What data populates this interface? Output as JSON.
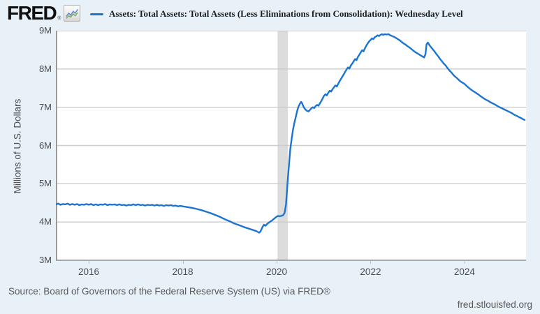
{
  "header": {
    "logo_text": "FRED",
    "logo_registered": "®",
    "legend": {
      "series_label": "Assets: Total Assets: Total Assets (Less Eliminations from Consolidation): Wednesday Level"
    }
  },
  "footer": {
    "source_text": "Source: Board of Governors of the Federal Reserve System (US) via FRED®",
    "site_link": "fred.stlouisfed.org"
  },
  "colors": {
    "page_bg": "#e8f0f8",
    "plot_bg": "#ffffff",
    "line": "#1b74d2",
    "grid": "#cdcdcd",
    "top_grid": "#c2c2c2",
    "axis": "#8a8a8a",
    "recession_band": "#dcdcdc",
    "tick_text": "#4d4d4d",
    "logo_sparkline_blue": "#5b84c4",
    "logo_sparkline_green": "#7aa854"
  },
  "chart_data": {
    "type": "line",
    "title": "Assets: Total Assets: Total Assets (Less Eliminations from Consolidation): Wednesday Level",
    "xlabel": "",
    "ylabel": "Millions of U.S. Dollars",
    "unit_note": "axis tick labels are compact millions: 9M = 9,000,000 million USD",
    "grid": "horizontal",
    "legend_position": "top",
    "xlim": [
      2015.3,
      2025.31
    ],
    "ylim": [
      3,
      9
    ],
    "yticks": [
      {
        "value": 9,
        "label": "9M"
      },
      {
        "value": 8,
        "label": "8M"
      },
      {
        "value": 7,
        "label": "7M"
      },
      {
        "value": 6,
        "label": "6M"
      },
      {
        "value": 5,
        "label": "5M"
      },
      {
        "value": 4,
        "label": "4M"
      },
      {
        "value": 3,
        "label": "3M"
      }
    ],
    "xticks": [
      {
        "value": 2016,
        "label": "2016"
      },
      {
        "value": 2018,
        "label": "2018"
      },
      {
        "value": 2020,
        "label": "2020"
      },
      {
        "value": 2022,
        "label": "2022"
      },
      {
        "value": 2024,
        "label": "2024"
      }
    ],
    "recession_band": {
      "from": 2020.02,
      "to": 2020.24
    },
    "series": [
      {
        "name": "Assets: Total Assets: Total Assets (Less Eliminations from Consolidation): Wednesday Level",
        "color": "#1b74d2",
        "points": [
          [
            2015.3,
            4.46
          ],
          [
            2015.35,
            4.48
          ],
          [
            2015.4,
            4.45
          ],
          [
            2015.45,
            4.47
          ],
          [
            2015.5,
            4.46
          ],
          [
            2015.55,
            4.48
          ],
          [
            2015.6,
            4.45
          ],
          [
            2015.65,
            4.47
          ],
          [
            2015.7,
            4.45
          ],
          [
            2015.75,
            4.47
          ],
          [
            2015.8,
            4.44
          ],
          [
            2015.85,
            4.46
          ],
          [
            2015.9,
            4.45
          ],
          [
            2015.95,
            4.47
          ],
          [
            2016.0,
            4.45
          ],
          [
            2016.05,
            4.47
          ],
          [
            2016.1,
            4.44
          ],
          [
            2016.15,
            4.46
          ],
          [
            2016.2,
            4.44
          ],
          [
            2016.25,
            4.46
          ],
          [
            2016.3,
            4.45
          ],
          [
            2016.35,
            4.47
          ],
          [
            2016.4,
            4.44
          ],
          [
            2016.45,
            4.46
          ],
          [
            2016.5,
            4.45
          ],
          [
            2016.55,
            4.46
          ],
          [
            2016.6,
            4.44
          ],
          [
            2016.65,
            4.46
          ],
          [
            2016.7,
            4.44
          ],
          [
            2016.75,
            4.45
          ],
          [
            2016.8,
            4.43
          ],
          [
            2016.85,
            4.45
          ],
          [
            2016.9,
            4.44
          ],
          [
            2016.95,
            4.46
          ],
          [
            2017.0,
            4.44
          ],
          [
            2017.05,
            4.46
          ],
          [
            2017.1,
            4.44
          ],
          [
            2017.15,
            4.45
          ],
          [
            2017.2,
            4.43
          ],
          [
            2017.25,
            4.45
          ],
          [
            2017.3,
            4.44
          ],
          [
            2017.35,
            4.45
          ],
          [
            2017.4,
            4.43
          ],
          [
            2017.45,
            4.45
          ],
          [
            2017.5,
            4.43
          ],
          [
            2017.55,
            4.44
          ],
          [
            2017.6,
            4.42
          ],
          [
            2017.65,
            4.44
          ],
          [
            2017.7,
            4.43
          ],
          [
            2017.75,
            4.44
          ],
          [
            2017.8,
            4.42
          ],
          [
            2017.85,
            4.43
          ],
          [
            2017.9,
            4.41
          ],
          [
            2017.95,
            4.42
          ],
          [
            2018.0,
            4.41
          ],
          [
            2018.1,
            4.39
          ],
          [
            2018.2,
            4.37
          ],
          [
            2018.3,
            4.34
          ],
          [
            2018.4,
            4.31
          ],
          [
            2018.5,
            4.27
          ],
          [
            2018.6,
            4.23
          ],
          [
            2018.7,
            4.18
          ],
          [
            2018.8,
            4.13
          ],
          [
            2018.9,
            4.07
          ],
          [
            2019.0,
            4.02
          ],
          [
            2019.1,
            3.96
          ],
          [
            2019.2,
            3.92
          ],
          [
            2019.3,
            3.87
          ],
          [
            2019.4,
            3.83
          ],
          [
            2019.5,
            3.79
          ],
          [
            2019.57,
            3.76
          ],
          [
            2019.63,
            3.72
          ],
          [
            2019.66,
            3.76
          ],
          [
            2019.7,
            3.87
          ],
          [
            2019.73,
            3.93
          ],
          [
            2019.76,
            3.9
          ],
          [
            2019.8,
            3.95
          ],
          [
            2019.85,
            4.0
          ],
          [
            2019.9,
            4.04
          ],
          [
            2019.95,
            4.09
          ],
          [
            2020.0,
            4.14
          ],
          [
            2020.03,
            4.16
          ],
          [
            2020.06,
            4.15
          ],
          [
            2020.1,
            4.16
          ],
          [
            2020.14,
            4.18
          ],
          [
            2020.17,
            4.24
          ],
          [
            2020.2,
            4.45
          ],
          [
            2020.23,
            5.0
          ],
          [
            2020.26,
            5.45
          ],
          [
            2020.29,
            5.9
          ],
          [
            2020.32,
            6.17
          ],
          [
            2020.35,
            6.42
          ],
          [
            2020.38,
            6.6
          ],
          [
            2020.41,
            6.76
          ],
          [
            2020.44,
            6.92
          ],
          [
            2020.47,
            7.03
          ],
          [
            2020.5,
            7.1
          ],
          [
            2020.52,
            7.14
          ],
          [
            2020.54,
            7.11
          ],
          [
            2020.57,
            7.02
          ],
          [
            2020.6,
            6.96
          ],
          [
            2020.64,
            6.91
          ],
          [
            2020.68,
            6.89
          ],
          [
            2020.71,
            6.93
          ],
          [
            2020.74,
            6.97
          ],
          [
            2020.77,
            7.0
          ],
          [
            2020.8,
            6.98
          ],
          [
            2020.83,
            7.03
          ],
          [
            2020.86,
            7.06
          ],
          [
            2020.89,
            7.04
          ],
          [
            2020.92,
            7.1
          ],
          [
            2020.95,
            7.16
          ],
          [
            2020.98,
            7.23
          ],
          [
            2021.01,
            7.3
          ],
          [
            2021.04,
            7.34
          ],
          [
            2021.07,
            7.31
          ],
          [
            2021.1,
            7.38
          ],
          [
            2021.13,
            7.43
          ],
          [
            2021.16,
            7.41
          ],
          [
            2021.19,
            7.47
          ],
          [
            2021.22,
            7.52
          ],
          [
            2021.25,
            7.57
          ],
          [
            2021.28,
            7.54
          ],
          [
            2021.31,
            7.61
          ],
          [
            2021.34,
            7.68
          ],
          [
            2021.37,
            7.74
          ],
          [
            2021.4,
            7.8
          ],
          [
            2021.43,
            7.86
          ],
          [
            2021.46,
            7.93
          ],
          [
            2021.49,
            7.99
          ],
          [
            2021.52,
            8.04
          ],
          [
            2021.55,
            8.01
          ],
          [
            2021.58,
            8.09
          ],
          [
            2021.61,
            8.14
          ],
          [
            2021.64,
            8.2
          ],
          [
            2021.67,
            8.26
          ],
          [
            2021.7,
            8.23
          ],
          [
            2021.73,
            8.31
          ],
          [
            2021.76,
            8.37
          ],
          [
            2021.79,
            8.43
          ],
          [
            2021.82,
            8.49
          ],
          [
            2021.85,
            8.46
          ],
          [
            2021.88,
            8.54
          ],
          [
            2021.91,
            8.61
          ],
          [
            2021.94,
            8.67
          ],
          [
            2021.97,
            8.72
          ],
          [
            2022.0,
            8.76
          ],
          [
            2022.03,
            8.8
          ],
          [
            2022.06,
            8.78
          ],
          [
            2022.09,
            8.83
          ],
          [
            2022.12,
            8.85
          ],
          [
            2022.15,
            8.88
          ],
          [
            2022.18,
            8.86
          ],
          [
            2022.21,
            8.89
          ],
          [
            2022.24,
            8.91
          ],
          [
            2022.27,
            8.89
          ],
          [
            2022.3,
            8.91
          ],
          [
            2022.34,
            8.9
          ],
          [
            2022.38,
            8.91
          ],
          [
            2022.42,
            8.88
          ],
          [
            2022.46,
            8.86
          ],
          [
            2022.5,
            8.84
          ],
          [
            2022.54,
            8.81
          ],
          [
            2022.58,
            8.78
          ],
          [
            2022.62,
            8.75
          ],
          [
            2022.66,
            8.71
          ],
          [
            2022.7,
            8.67
          ],
          [
            2022.74,
            8.64
          ],
          [
            2022.78,
            8.6
          ],
          [
            2022.82,
            8.57
          ],
          [
            2022.86,
            8.53
          ],
          [
            2022.9,
            8.49
          ],
          [
            2022.94,
            8.45
          ],
          [
            2022.98,
            8.42
          ],
          [
            2023.02,
            8.39
          ],
          [
            2023.06,
            8.36
          ],
          [
            2023.1,
            8.33
          ],
          [
            2023.14,
            8.3
          ],
          [
            2023.17,
            8.39
          ],
          [
            2023.19,
            8.64
          ],
          [
            2023.22,
            8.69
          ],
          [
            2023.25,
            8.63
          ],
          [
            2023.28,
            8.58
          ],
          [
            2023.32,
            8.52
          ],
          [
            2023.36,
            8.46
          ],
          [
            2023.4,
            8.39
          ],
          [
            2023.44,
            8.33
          ],
          [
            2023.48,
            8.26
          ],
          [
            2023.52,
            8.2
          ],
          [
            2023.56,
            8.14
          ],
          [
            2023.6,
            8.09
          ],
          [
            2023.64,
            8.02
          ],
          [
            2023.68,
            7.96
          ],
          [
            2023.72,
            7.91
          ],
          [
            2023.76,
            7.85
          ],
          [
            2023.8,
            7.8
          ],
          [
            2023.84,
            7.76
          ],
          [
            2023.88,
            7.71
          ],
          [
            2023.92,
            7.67
          ],
          [
            2023.96,
            7.64
          ],
          [
            2024.0,
            7.61
          ],
          [
            2024.05,
            7.55
          ],
          [
            2024.1,
            7.5
          ],
          [
            2024.15,
            7.45
          ],
          [
            2024.2,
            7.41
          ],
          [
            2024.25,
            7.37
          ],
          [
            2024.3,
            7.33
          ],
          [
            2024.35,
            7.28
          ],
          [
            2024.4,
            7.24
          ],
          [
            2024.45,
            7.2
          ],
          [
            2024.5,
            7.17
          ],
          [
            2024.55,
            7.13
          ],
          [
            2024.6,
            7.1
          ],
          [
            2024.65,
            7.07
          ],
          [
            2024.7,
            7.03
          ],
          [
            2024.75,
            7.0
          ],
          [
            2024.8,
            6.97
          ],
          [
            2024.85,
            6.94
          ],
          [
            2024.9,
            6.91
          ],
          [
            2024.95,
            6.88
          ],
          [
            2025.0,
            6.85
          ],
          [
            2025.04,
            6.82
          ],
          [
            2025.08,
            6.79
          ],
          [
            2025.12,
            6.77
          ],
          [
            2025.16,
            6.74
          ],
          [
            2025.2,
            6.72
          ],
          [
            2025.24,
            6.69
          ],
          [
            2025.28,
            6.67
          ]
        ]
      }
    ]
  }
}
